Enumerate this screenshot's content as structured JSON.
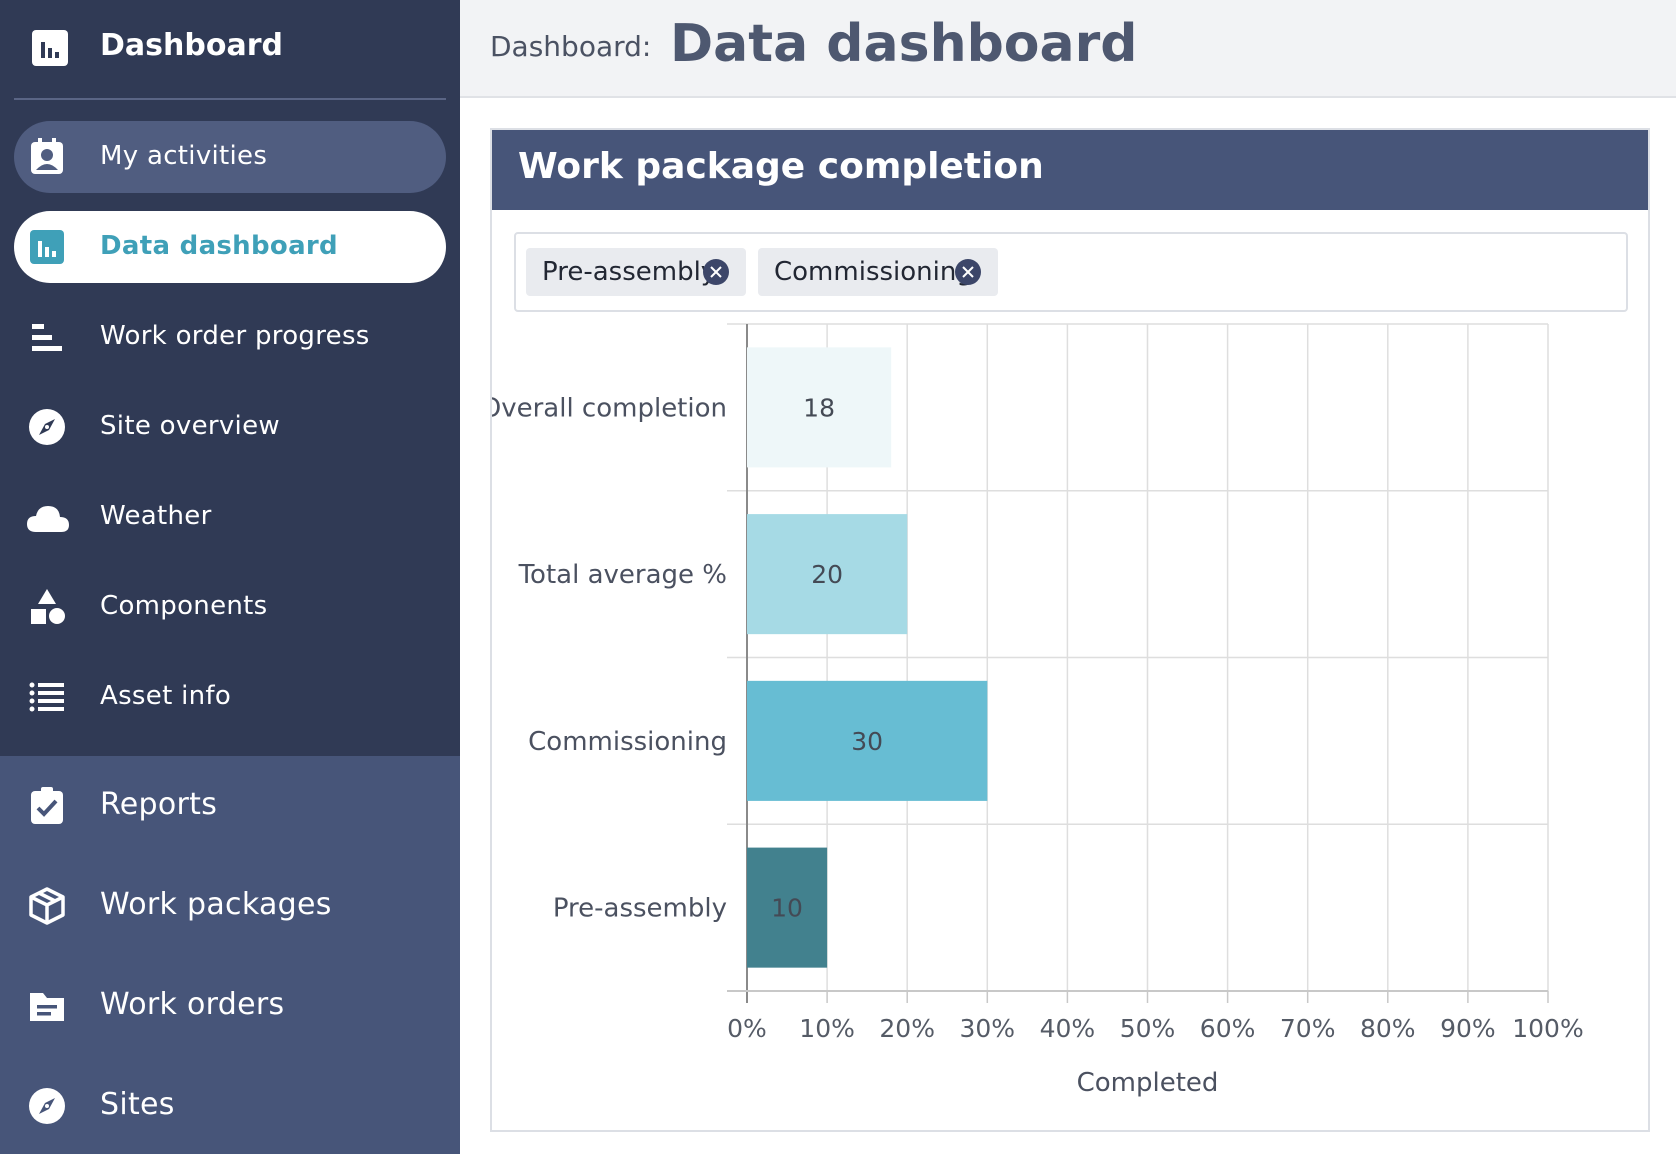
{
  "sidebar": {
    "brand": {
      "label": "Dashboard",
      "icon": "bar-chart-icon"
    },
    "items": [
      {
        "label": "My activities",
        "icon": "contact-badge-icon",
        "state": "hover"
      },
      {
        "label": "Data dashboard",
        "icon": "bar-chart-icon",
        "state": "active"
      },
      {
        "label": "Work order progress",
        "icon": "progress-bars-icon",
        "state": ""
      },
      {
        "label": "Site overview",
        "icon": "compass-icon",
        "state": ""
      },
      {
        "label": "Weather",
        "icon": "cloud-icon",
        "state": ""
      },
      {
        "label": "Components",
        "icon": "shapes-icon",
        "state": ""
      },
      {
        "label": "Asset info",
        "icon": "list-icon",
        "state": ""
      }
    ],
    "lower_items": [
      {
        "label": "Reports",
        "icon": "clipboard-check-icon"
      },
      {
        "label": "Work packages",
        "icon": "package-icon"
      },
      {
        "label": "Work orders",
        "icon": "folder-icon"
      },
      {
        "label": "Sites",
        "icon": "compass-icon"
      }
    ]
  },
  "header": {
    "breadcrumb": "Dashboard:",
    "title": "Data dashboard"
  },
  "card": {
    "title": "Work package completion",
    "filters": [
      "Pre-assembly",
      "Commissioning"
    ]
  },
  "colors": {
    "sidebar_dark": "#303a55",
    "sidebar_light": "#475579",
    "accent": "#3fa0b8"
  },
  "chart_data": {
    "type": "bar",
    "orientation": "horizontal",
    "categories": [
      "Overall completion",
      "Total average %",
      "Commissioning",
      "Pre-assembly"
    ],
    "values": [
      18,
      20,
      30,
      10
    ],
    "data_labels": [
      "18",
      "20",
      "30",
      "10"
    ],
    "bar_colors": [
      "#eef7f9",
      "#a6dae5",
      "#67bdd3",
      "#42818e"
    ],
    "xlim": [
      0,
      100
    ],
    "x_ticks": [
      "0%",
      "10%",
      "20%",
      "30%",
      "40%",
      "50%",
      "60%",
      "70%",
      "80%",
      "90%",
      "100%"
    ],
    "xlabel": "Completed",
    "ylabel": "",
    "grid": true,
    "legend": "none"
  }
}
